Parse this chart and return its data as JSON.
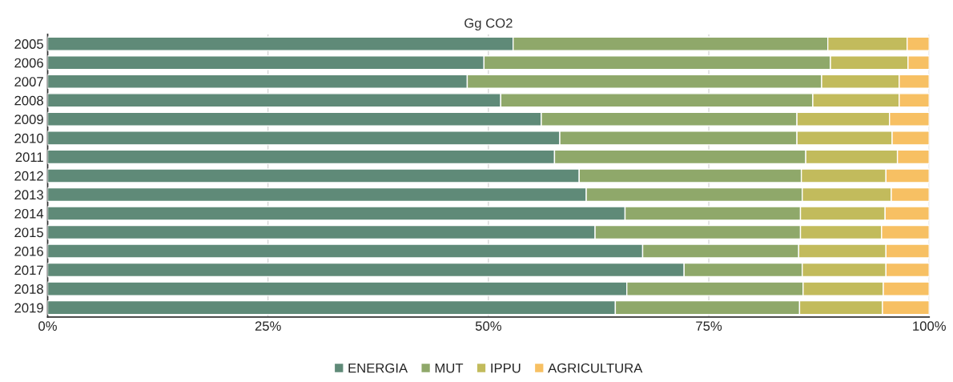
{
  "chart_data": {
    "type": "bar",
    "orientation": "horizontal",
    "stacked": true,
    "title": "Gg CO2",
    "categories": [
      "2005",
      "2006",
      "2007",
      "2008",
      "2009",
      "2010",
      "2011",
      "2012",
      "2013",
      "2014",
      "2015",
      "2016",
      "2017",
      "2018",
      "2019"
    ],
    "series": [
      {
        "name": "ENERGIA",
        "color": "#5f8a78",
        "values": [
          52.8,
          49.5,
          47.6,
          51.4,
          56.0,
          58.1,
          57.5,
          60.3,
          61.1,
          65.5,
          62.1,
          67.5,
          72.2,
          65.7,
          64.4
        ]
      },
      {
        "name": "MUT",
        "color": "#8fa86a",
        "values": [
          35.7,
          39.3,
          40.2,
          35.4,
          29.0,
          26.9,
          28.5,
          25.2,
          24.5,
          19.9,
          23.3,
          17.7,
          13.4,
          20.0,
          20.9
        ]
      },
      {
        "name": "IPPU",
        "color": "#c2bb5c",
        "values": [
          9.0,
          8.8,
          8.8,
          9.8,
          10.5,
          10.8,
          10.4,
          9.6,
          10.1,
          9.6,
          9.2,
          9.9,
          9.5,
          9.1,
          9.4
        ]
      },
      {
        "name": "AGRICULTURA",
        "color": "#f7c063",
        "values": [
          2.5,
          2.4,
          3.4,
          3.4,
          4.5,
          4.2,
          3.6,
          4.9,
          4.3,
          5.0,
          5.4,
          4.9,
          4.9,
          5.2,
          5.3
        ]
      }
    ],
    "xlim": [
      0,
      100
    ],
    "xticks": [
      {
        "value": 0,
        "label": "0%"
      },
      {
        "value": 25,
        "label": "25%"
      },
      {
        "value": 50,
        "label": "50%"
      },
      {
        "value": 75,
        "label": "75%"
      },
      {
        "value": 100,
        "label": "100%"
      }
    ],
    "grid": "x",
    "legend": "bottom"
  }
}
